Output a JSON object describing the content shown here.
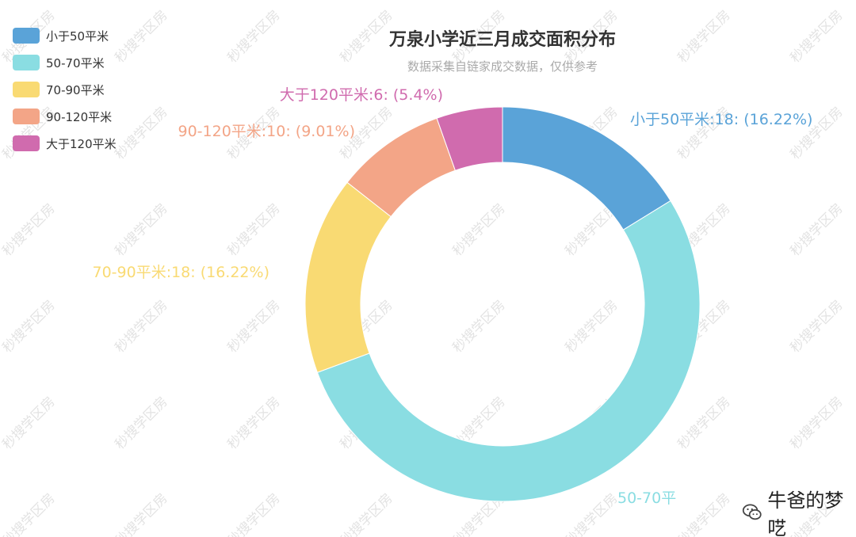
{
  "chart_data": {
    "type": "pie",
    "variant": "donut",
    "title": "万泉小学近三月成交面积分布",
    "subtitle": "数据采集自链家成交数据，仅供参考",
    "categories": [
      "小于50平米",
      "50-70平米",
      "70-90平米",
      "90-120平米",
      "大于120平米"
    ],
    "values": [
      18,
      59,
      18,
      10,
      6
    ],
    "percents": [
      16.22,
      53.15,
      16.22,
      9.01,
      5.4
    ],
    "colors": [
      "#5aa3d8",
      "#8adde2",
      "#f9da73",
      "#f3a587",
      "#d06bae"
    ],
    "slice_labels": [
      "小于50平米:18: (16.22%)",
      "50-70平",
      "70-90平米:18: (16.22%)",
      "90-120平米:10: (9.01%)",
      "大于120平米:6: (5.4%)"
    ],
    "legend": {
      "position": "top-left",
      "entries": [
        "小于50平米",
        "50-70平米",
        "70-90平米",
        "90-120平米",
        "大于120平米"
      ]
    }
  },
  "watermark": {
    "repeat_text": "秒搜学区房",
    "brand_text": "牛爸的梦呓",
    "brand_icon": "wechat-icon"
  }
}
